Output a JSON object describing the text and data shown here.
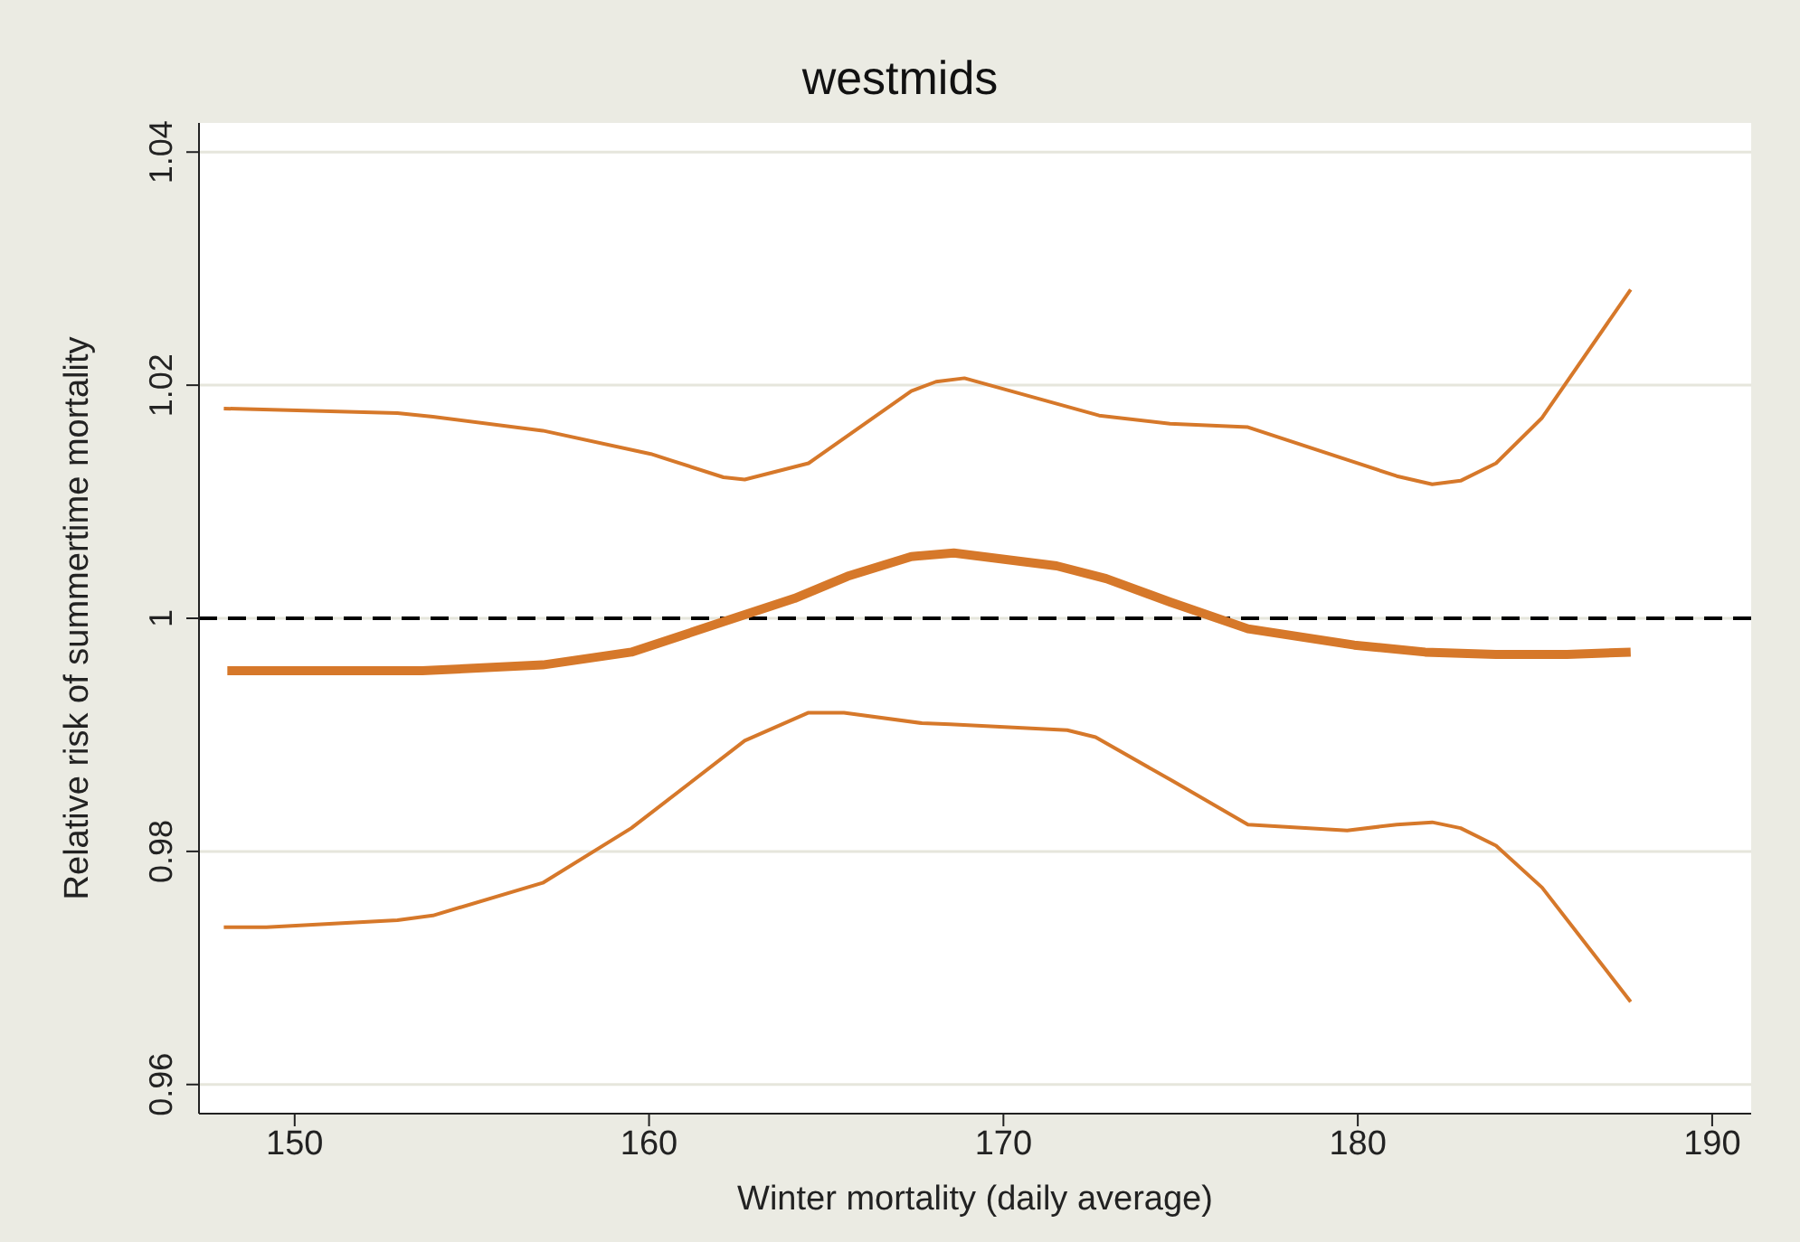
{
  "chart_data": {
    "type": "line",
    "title": "westmids",
    "xlabel": "Winter mortality (daily average)",
    "ylabel": "Relative risk of summertime mortality",
    "xlim": [
      147.3,
      191.1
    ],
    "xticks": [
      150,
      160,
      170,
      180,
      190
    ],
    "ylim": [
      0.9575,
      1.0425
    ],
    "yticks": [
      0.96,
      0.98,
      1,
      1.02,
      1.04
    ],
    "grid": "y",
    "legend": false,
    "marker": "none",
    "line_style": "solid",
    "ref_lines": [
      {
        "axis": "y",
        "value": 1,
        "color": "#000000",
        "line_style": "dashed"
      }
    ],
    "series": [
      {
        "color": "#d6782a",
        "x": [
          148.1,
          153.6,
          157.0,
          159.5,
          162.1,
          164.1,
          165.6,
          167.4,
          168.6,
          171.5,
          172.9,
          174.7,
          176.9,
          179.9,
          181.9,
          183.9,
          185.9,
          187.7
        ],
        "values": [
          0.9955,
          0.9955,
          0.996,
          0.9971,
          0.9997,
          1.0017,
          1.0036,
          1.0053,
          1.0056,
          1.0045,
          1.0034,
          1.0014,
          0.9991,
          0.9977,
          0.9971,
          0.9969,
          0.9969,
          0.9971
        ]
      },
      {
        "color": "#d6782a",
        "x": [
          148.0,
          152.9,
          153.9,
          157.0,
          160.05,
          162.1,
          162.7,
          164.5,
          167.4,
          168.1,
          168.9,
          172.7,
          174.7,
          176.9,
          179.7,
          181.1,
          182.1,
          182.9,
          183.9,
          185.2,
          187.7
        ],
        "values": [
          1.018,
          1.0176,
          1.0173,
          1.0161,
          1.0141,
          1.0121,
          1.0119,
          1.0133,
          1.0195,
          1.0203,
          1.0206,
          1.0174,
          1.0167,
          1.0164,
          1.0136,
          1.0122,
          1.0115,
          1.0118,
          1.0133,
          1.0172,
          1.0282
        ]
      },
      {
        "color": "#d6782a",
        "x": [
          148.0,
          149.2,
          152.9,
          153.9,
          157.0,
          159.5,
          162.7,
          164.5,
          165.5,
          167.7,
          168.5,
          171.8,
          172.6,
          174.8,
          176.9,
          179.7,
          181.1,
          182.1,
          182.9,
          183.9,
          185.2,
          187.7
        ],
        "values": [
          0.9735,
          0.9735,
          0.9741,
          0.9745,
          0.9773,
          0.982,
          0.9895,
          0.9919,
          0.9919,
          0.991,
          0.9909,
          0.9904,
          0.9898,
          0.986,
          0.9823,
          0.9818,
          0.9823,
          0.9825,
          0.982,
          0.9805,
          0.9769,
          0.9671
        ]
      }
    ]
  }
}
